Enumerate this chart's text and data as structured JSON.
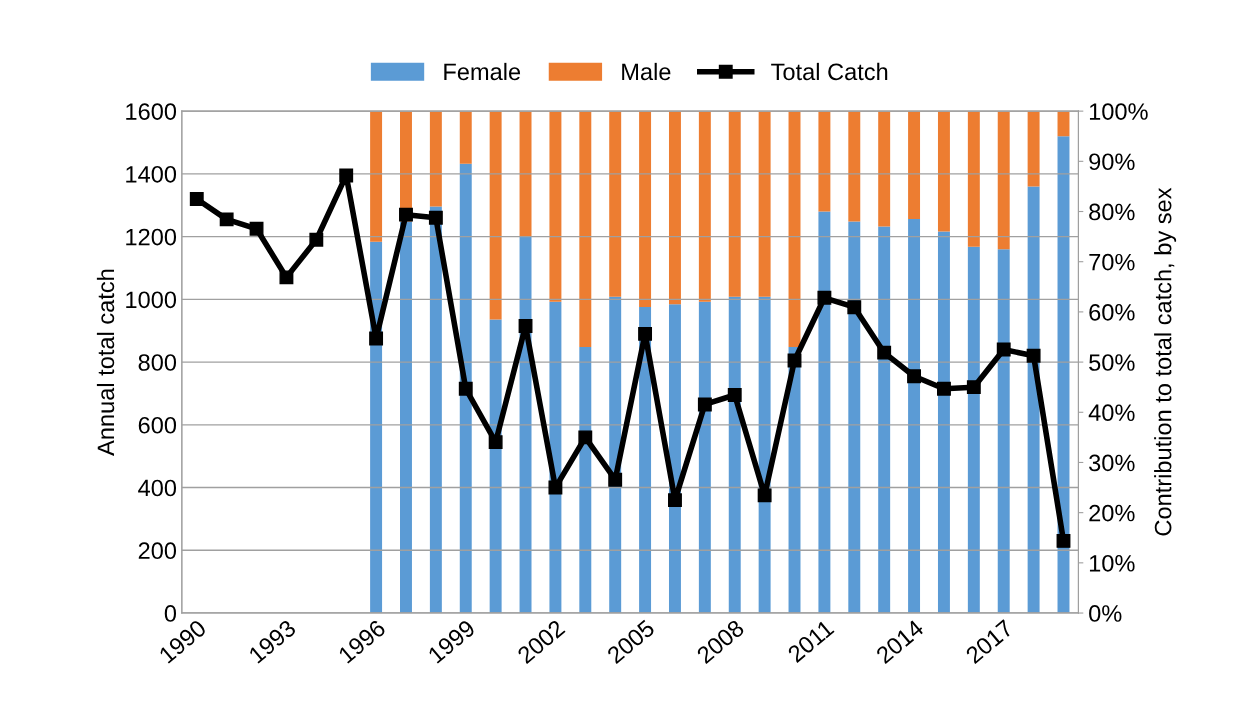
{
  "chart_data": {
    "type": "bar",
    "stacked": true,
    "ylabel": "Annual total catch",
    "y2label": "Contribution to total catch, by sex",
    "categories": [
      "1990",
      null,
      null,
      "1993",
      null,
      null,
      "1996",
      null,
      null,
      "1999",
      null,
      null,
      "2002",
      null,
      null,
      "2005",
      null,
      null,
      "2008",
      null,
      null,
      "2011",
      null,
      null,
      "2014",
      null,
      null,
      "2017",
      null,
      null
    ],
    "series": [
      {
        "name": "Female",
        "axis": "y2",
        "color": "#5b9bd5",
        "values": [
          null,
          null,
          null,
          null,
          null,
          null,
          74,
          78,
          81,
          89.5,
          58.5,
          75,
          62,
          53,
          63,
          61,
          61.5,
          62,
          63,
          63,
          53,
          80,
          78,
          77,
          78.5,
          76,
          73,
          72.5,
          85,
          95
        ]
      },
      {
        "name": "Male",
        "axis": "y2",
        "color": "#ed7d31",
        "values": [
          null,
          null,
          null,
          null,
          null,
          null,
          26,
          22,
          19,
          10.5,
          41.5,
          25,
          38,
          47,
          37,
          39,
          38.5,
          38,
          37,
          37,
          47,
          20,
          22,
          23,
          21.5,
          24,
          27,
          27.5,
          15,
          5
        ]
      },
      {
        "name": "Total Catch",
        "type": "line",
        "axis": "y",
        "color": "#000000",
        "marker": "square",
        "values": [
          1320,
          1255,
          1225,
          1070,
          1190,
          1395,
          875,
          1270,
          1260,
          715,
          545,
          915,
          400,
          560,
          425,
          890,
          360,
          665,
          695,
          375,
          805,
          1005,
          975,
          830,
          755,
          715,
          720,
          840,
          820,
          230
        ]
      }
    ],
    "ylim": [
      0,
      1600
    ],
    "yticks": [
      0,
      200,
      400,
      600,
      800,
      1000,
      1200,
      1400,
      1600
    ],
    "y2lim": [
      0,
      100
    ],
    "y2ticks": [
      {
        "value": 0,
        "label": "0%"
      },
      {
        "value": 10,
        "label": "10%"
      },
      {
        "value": 20,
        "label": "20%"
      },
      {
        "value": 30,
        "label": "30%"
      },
      {
        "value": 40,
        "label": "40%"
      },
      {
        "value": 50,
        "label": "50%"
      },
      {
        "value": 60,
        "label": "60%"
      },
      {
        "value": 70,
        "label": "70%"
      },
      {
        "value": 80,
        "label": "80%"
      },
      {
        "value": 90,
        "label": "90%"
      },
      {
        "value": 100,
        "label": "100%"
      }
    ],
    "grid": "y",
    "legend": "top"
  }
}
